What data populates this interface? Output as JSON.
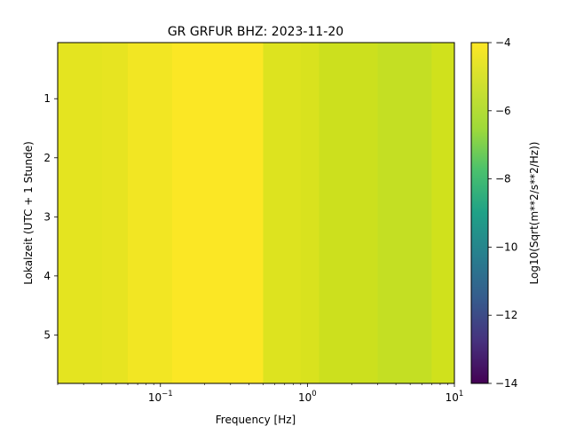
{
  "chart_data": {
    "type": "heatmap",
    "title": "GR GRFUR  BHZ: 2023-11-20",
    "xlabel": "Frequency [Hz]",
    "ylabel": "Lokalzeit (UTC + 1 Stunde)",
    "colorbar_label": "Log10(Sqrt(m**2/s**2/Hz))",
    "colormap": "viridis",
    "x_scale": "log",
    "xlim": [
      0.02,
      10
    ],
    "ylim": [
      5.82,
      0.05
    ],
    "y_inverted": true,
    "clim": [
      -14,
      -4
    ],
    "x_major_ticks": [
      {
        "value": 0.1,
        "base": "10",
        "exp": "−1"
      },
      {
        "value": 1,
        "base": "10",
        "exp": "0"
      },
      {
        "value": 10,
        "base": "10",
        "exp": "1"
      }
    ],
    "y_ticks": [
      1,
      2,
      3,
      4,
      5
    ],
    "y_tick_labels": [
      "1",
      "2",
      "3",
      "4",
      "5"
    ],
    "colorbar_ticks": [
      -4,
      -6,
      -8,
      -10,
      -12,
      -14
    ],
    "colorbar_tick_labels": [
      "−4",
      "−6",
      "−8",
      "−10",
      "−12",
      "−14"
    ],
    "frequency_bands": [
      {
        "f_min": 0.02,
        "f_max": 0.04,
        "value": -4.7
      },
      {
        "f_min": 0.04,
        "f_max": 0.06,
        "value": -4.6
      },
      {
        "f_min": 0.06,
        "f_max": 0.12,
        "value": -4.3
      },
      {
        "f_min": 0.12,
        "f_max": 0.5,
        "value": -4.05
      },
      {
        "f_min": 0.5,
        "f_max": 0.9,
        "value": -4.9
      },
      {
        "f_min": 0.9,
        "f_max": 1.2,
        "value": -5.0
      },
      {
        "f_min": 1.2,
        "f_max": 3.0,
        "value": -5.35
      },
      {
        "f_min": 3.0,
        "f_max": 7.0,
        "value": -5.55
      },
      {
        "f_min": 7.0,
        "f_max": 10,
        "value": -5.25
      }
    ],
    "grid": false,
    "legend": "colorbar-right"
  }
}
